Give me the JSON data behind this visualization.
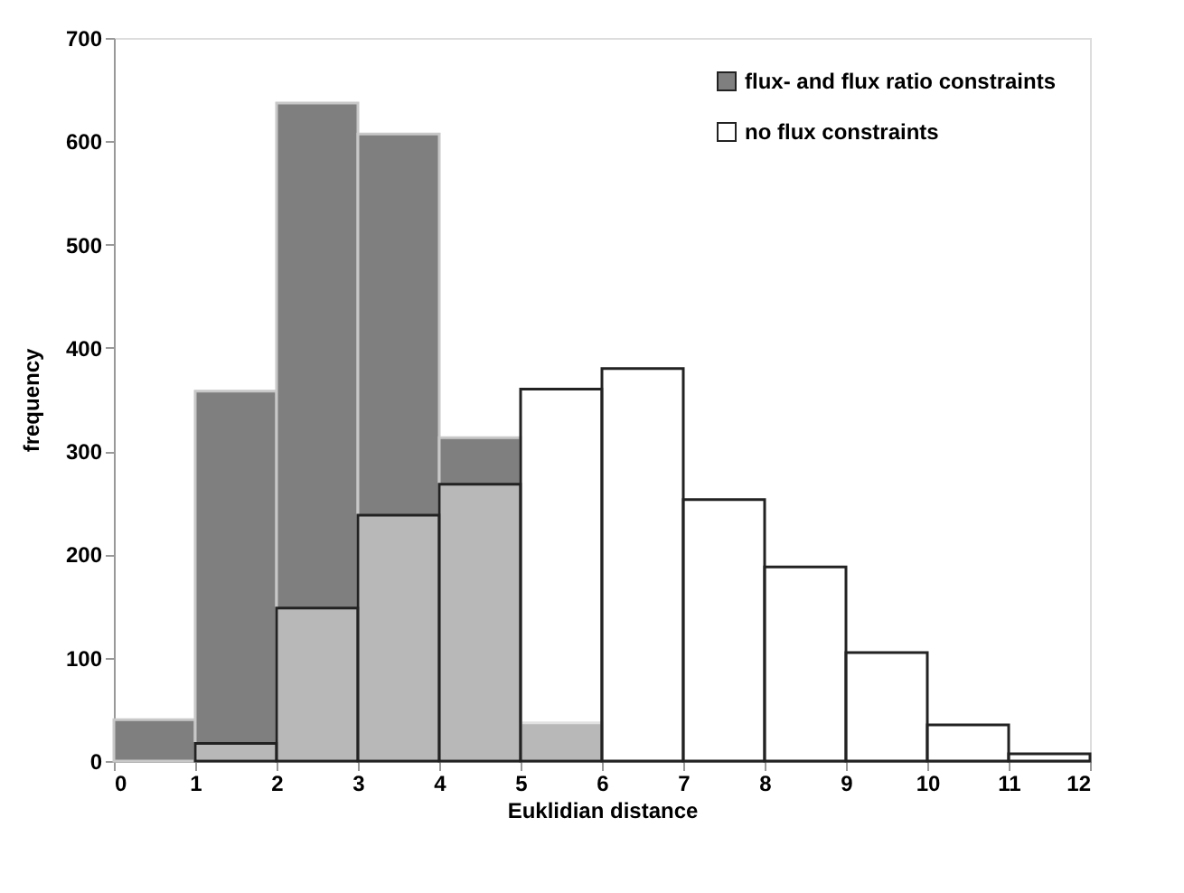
{
  "chart_data": {
    "type": "histogram",
    "xlabel": "Euklidian distance",
    "ylabel": "frequency",
    "bins": [
      0,
      1,
      2,
      3,
      4,
      5,
      6,
      7,
      8,
      9,
      10,
      11,
      12
    ],
    "series": [
      {
        "name": "flux- and flux ratio constraints",
        "color": "#7f7f7f",
        "values": [
          40,
          358,
          637,
          607,
          313,
          37,
          0,
          0,
          0,
          0,
          0,
          0
        ]
      },
      {
        "name": "no flux constraints",
        "color": "#ffffff",
        "values": [
          0,
          17,
          148,
          238,
          268,
          360,
          380,
          253,
          188,
          105,
          35,
          7
        ]
      }
    ],
    "xlim": [
      0,
      12
    ],
    "xticks": [
      0,
      1,
      2,
      3,
      4,
      5,
      6,
      7,
      8,
      9,
      10,
      11,
      12
    ],
    "ylim": [
      0,
      700
    ],
    "yticks": [
      0,
      100,
      200,
      300,
      400,
      500,
      600,
      700
    ],
    "grid": false,
    "legend": "top right"
  }
}
